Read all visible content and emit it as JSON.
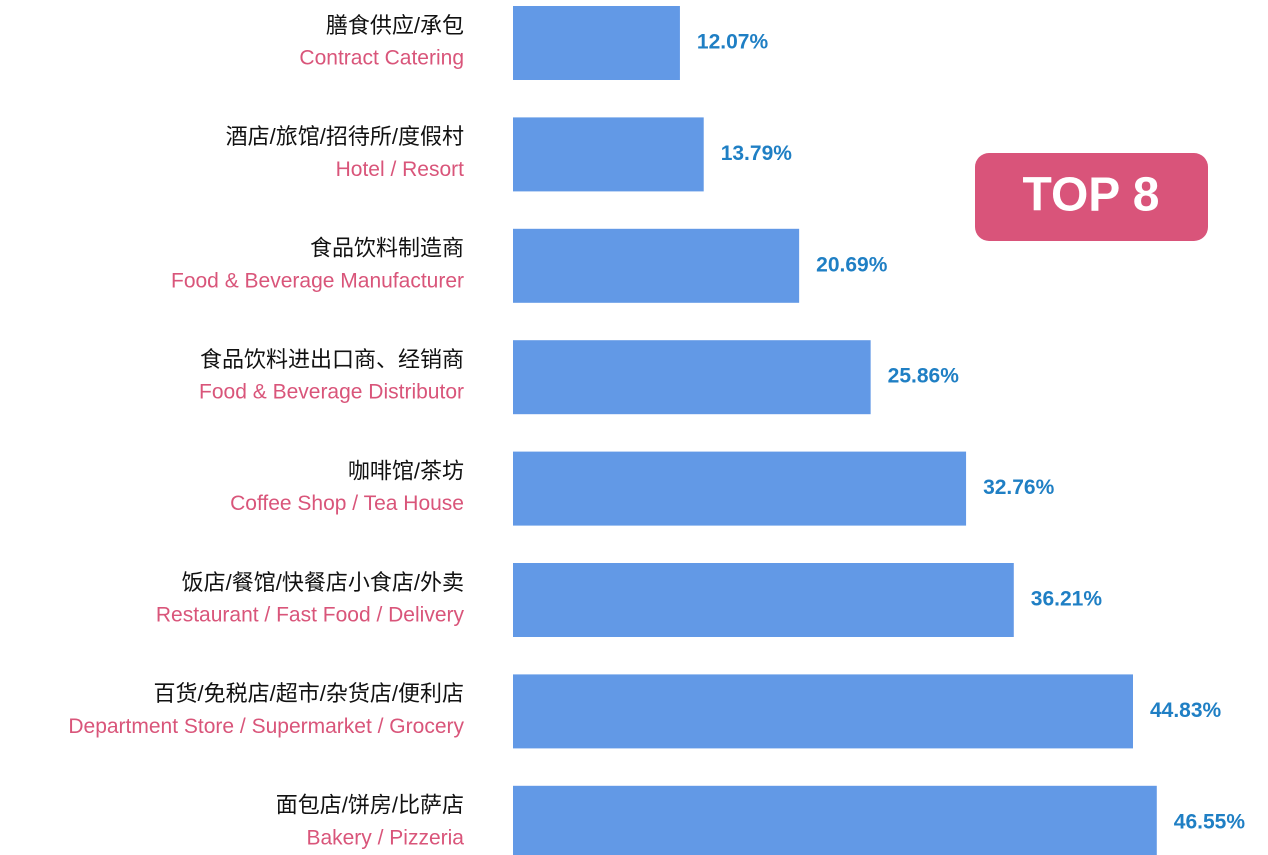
{
  "chart_data": {
    "type": "bar",
    "orientation": "horizontal",
    "categories": [
      "膳食供应/承包",
      "酒店/旅馆/招待所/度假村",
      "食品饮料制造商",
      "食品饮料进出口商、经销商",
      "咖啡馆/茶坊",
      "饭店/餐馆/快餐店小食店/外卖",
      "百货/免税店/超市/杂货店/便利店",
      "面包店/饼房/比萨店"
    ],
    "categories_en": [
      "Contract Catering",
      "Hotel / Resort",
      "Food & Beverage Manufacturer",
      "Food & Beverage Distributor",
      "Coffee Shop / Tea House",
      "Restaurant / Fast Food / Delivery",
      "Department Store / Supermarket / Grocery",
      "Bakery / Pizzeria"
    ],
    "values": [
      12.07,
      13.79,
      20.69,
      25.86,
      32.76,
      36.21,
      44.83,
      46.55
    ],
    "value_labels": [
      "12.07%",
      "13.79%",
      "20.69%",
      "25.86%",
      "32.76%",
      "36.21%",
      "44.83%",
      "46.55%"
    ],
    "color": "#6299e6",
    "annotation": "TOP 8"
  }
}
